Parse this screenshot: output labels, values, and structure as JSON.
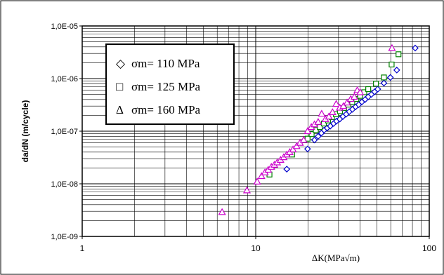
{
  "chart_data": {
    "type": "scatter",
    "title": "",
    "xlabel": "ΔK(MPa√m)",
    "ylabel": "da/dN (m/cycle)",
    "xscale": "log",
    "yscale": "log",
    "xlim": [
      1,
      100
    ],
    "ylim": [
      1e-09,
      1e-05
    ],
    "grid": true,
    "legend_position": "top-left",
    "x_ticks": [
      "1",
      "10",
      "100"
    ],
    "y_ticks": [
      "1,0E-09",
      "1,0E-08",
      "1,0E-07",
      "1,0E-06",
      "1,0E-05"
    ],
    "legend": [
      {
        "symbol": "◇",
        "label": "σm= 110 MPa"
      },
      {
        "symbol": "□",
        "label": "σm= 125 MPa"
      },
      {
        "symbol": "Δ",
        "label": "σm= 160 MPa"
      }
    ],
    "series": [
      {
        "name": "σm= 110 MPa",
        "marker": "diamond",
        "color": "#0000cc",
        "x": [
          15.1,
          19.9,
          21.8,
          22.9,
          23.9,
          24.8,
          25.8,
          26.9,
          28.1,
          29.2,
          30.5,
          31.8,
          33.2,
          34.6,
          36.1,
          37.6,
          39.2,
          40.9,
          42.7,
          44.5,
          46.4,
          48.4,
          50.5,
          54.8,
          59.7,
          65.0,
          83.0
        ],
        "y": [
          1.9e-08,
          4.6e-08,
          6.8e-08,
          8e-08,
          9.2e-08,
          1.05e-07,
          1.15e-07,
          1.25e-07,
          1.4e-07,
          1.55e-07,
          1.7e-07,
          1.9e-07,
          2.1e-07,
          2.35e-07,
          2.6e-07,
          2.9e-07,
          3.2e-07,
          3.6e-07,
          4e-07,
          4.5e-07,
          5e-07,
          5.6e-07,
          6.3e-07,
          8.2e-07,
          1.05e-06,
          1.45e-06,
          3.8e-06
        ]
      },
      {
        "name": "σm= 125 MPa",
        "marker": "square",
        "color": "#008000",
        "x": [
          12.0,
          16.2,
          19.9,
          21.0,
          22.2,
          23.4,
          24.7,
          26.1,
          27.5,
          29.0,
          30.6,
          32.3,
          34.1,
          36.0,
          38.0,
          40.0,
          42.2,
          44.5,
          49.3,
          54.8,
          60.7,
          66.5
        ],
        "y": [
          1.5e-08,
          3.6e-08,
          7.2e-08,
          8.8e-08,
          1.05e-07,
          1.2e-07,
          1.4e-07,
          1.6e-07,
          1.85e-07,
          2.1e-07,
          2.4e-07,
          2.75e-07,
          3.2e-07,
          3.6e-07,
          4.1e-07,
          4.7e-07,
          5.5e-07,
          6.3e-07,
          8e-07,
          1.05e-06,
          1.85e-06,
          2.9e-06
        ]
      },
      {
        "name": "σm= 160 MPa",
        "marker": "triangle",
        "color": "#cc00cc",
        "x": [
          6.4,
          8.9,
          10.2,
          10.8,
          11.3,
          11.8,
          12.3,
          12.8,
          13.3,
          13.9,
          14.5,
          15.1,
          15.7,
          16.4,
          17.2,
          18.0,
          18.9,
          19.9,
          20.9,
          21.8,
          22.9,
          24.0,
          25.2,
          26.4,
          27.7,
          29.1,
          30.5,
          32.0,
          33.6,
          35.3,
          37.0,
          38.5,
          40.0,
          61.0
        ],
        "y": [
          2.9e-09,
          7.5e-09,
          1.1e-08,
          1.4e-08,
          1.65e-08,
          1.85e-08,
          2.1e-08,
          2.3e-08,
          2.55e-08,
          2.85e-08,
          3.2e-08,
          3.6e-08,
          4e-08,
          4.5e-08,
          5.2e-08,
          6e-08,
          6.8e-08,
          1e-07,
          1.2e-07,
          1.35e-07,
          1.5e-07,
          2.15e-07,
          1.7e-07,
          1.9e-07,
          2.3e-07,
          3.3e-07,
          2.8e-07,
          3e-07,
          3.5e-07,
          4.1e-07,
          4.5e-07,
          6e-07,
          5.5e-07,
          3.8e-06
        ]
      }
    ]
  }
}
